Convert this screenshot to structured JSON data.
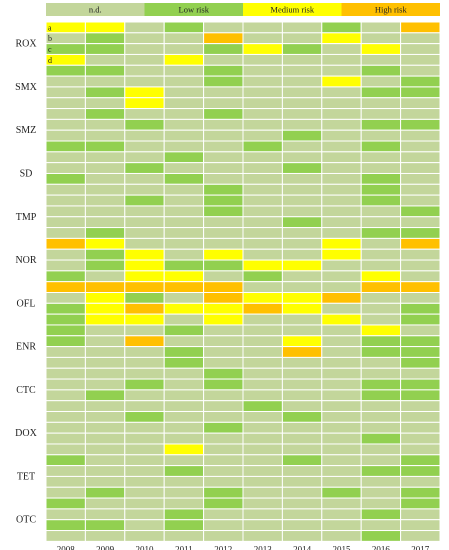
{
  "chart_data": {
    "type": "heatmap",
    "title": "",
    "xlabel": "",
    "ylabel": "",
    "legend": {
      "placement": "top",
      "entries": [
        {
          "label": "n.d.",
          "color": "#c3d69b"
        },
        {
          "label": "Low risk",
          "color": "#92d050"
        },
        {
          "label": "Medium risk",
          "color": "#ffff00"
        },
        {
          "label": "High risk",
          "color": "#ffc000"
        }
      ]
    },
    "years": [
      "2008",
      "2009",
      "2010",
      "2011",
      "2012",
      "2013",
      "2014",
      "2015",
      "2016",
      "2017"
    ],
    "row_labels": [
      "a",
      "b",
      "c",
      "d"
    ],
    "antibiotics": [
      "ROX",
      "SMX",
      "SMZ",
      "SD",
      "TMP",
      "NOR",
      "OFL",
      "ENR",
      "CTC",
      "DOX",
      "TET",
      "OTC"
    ],
    "category_codes": {
      "n": "n.d.",
      "l": "Low risk",
      "m": "Medium risk",
      "h": "High risk"
    },
    "cells": [
      [
        "mmglggglgh",
        "glgghggmgg",
        "llgglmlgmg",
        "mggmgggggg"
      ],
      [
        "llgglggglg",
        "gggglggmgl",
        "glmgggggll",
        "ggmggggggg"
      ],
      [
        "glgglggggg",
        "gglgggggll",
        "gggggglggg",
        "llggglgglg"
      ],
      [
        "ggglgggggg",
        "gglggglggg",
        "lgglgggglg",
        "gggglggglg"
      ],
      [
        "gglglggglg",
        "gggglggggl",
        "gggggglggg",
        "glggggggll"
      ],
      [
        "hmgggggmgh",
        "glmgmggmgg",
        "glmllmmggg",
        "lgmmglggmg"
      ],
      [
        "hhhhhggghh",
        "gmlghmmhgg",
        "lmhmmhmggl",
        "lmmgmggmgl"
      ],
      [
        "lgglggggmg",
        "lghgggmgll",
        "ggglgghgll",
        "ggglgggggl"
      ],
      [
        "gggglggggg",
        "gglglgggll",
        "glggggggll",
        "ggggglgggg"
      ],
      [
        "gglggglggg",
        "gggglggggg",
        "gggggggglg",
        "gggmgggggg"
      ],
      [
        "lggggglggl",
        "ggglggggll",
        "gggggggggg",
        "glgglgglgl"
      ],
      [
        "lggglggggl",
        "ggglgggglg",
        "llglgggggg",
        "gggggggglg"
      ]
    ]
  }
}
